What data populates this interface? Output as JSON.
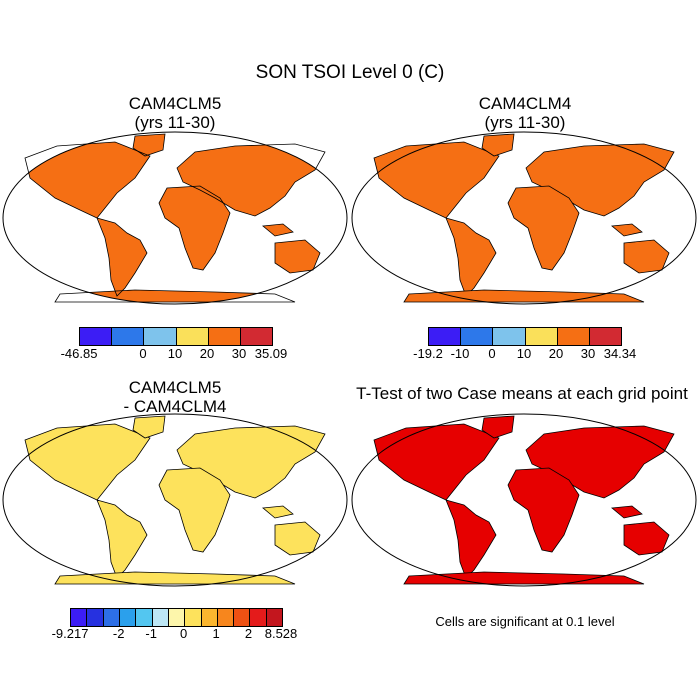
{
  "figure": {
    "title": "SON TSOI Level 0 (C)"
  },
  "panels": [
    {
      "title1": "CAM4CLM5",
      "title2": "(yrs 11-30)",
      "colorbar": {
        "colors": [
          "#3c1df5",
          "#2d78ea",
          "#7ec3ec",
          "#fae05a",
          "#f56f14",
          "#d22a32"
        ],
        "labels": [
          "-46.85",
          "0",
          "10",
          "20",
          "30",
          "35.09"
        ]
      }
    },
    {
      "title1": "CAM4CLM4",
      "title2": "(yrs 11-30)",
      "colorbar": {
        "colors": [
          "#3c1df5",
          "#2d78ea",
          "#7ec3ec",
          "#fae05a",
          "#f56f14",
          "#d22a32"
        ],
        "labels": [
          "-19.2",
          "-10",
          "0",
          "10",
          "20",
          "30",
          "34.34"
        ]
      }
    },
    {
      "title1": "CAM4CLM5",
      "title2": "- CAM4CLM4",
      "colorbar": {
        "colors": [
          "#3c1df5",
          "#2631e0",
          "#2d6fe7",
          "#2ba0ec",
          "#53c6f0",
          "#bde7f5",
          "#fdf6ab",
          "#fde25c",
          "#fbb62f",
          "#f7861d",
          "#ee5113",
          "#e41b1b",
          "#c3161e"
        ],
        "labels": [
          "-9.217",
          "-2",
          "-1",
          "0",
          "1",
          "2",
          "8.528"
        ]
      }
    },
    {
      "title1": "T-Test of two Case means at each grid point",
      "note": "Cells are significant at 0.1 level"
    }
  ]
}
